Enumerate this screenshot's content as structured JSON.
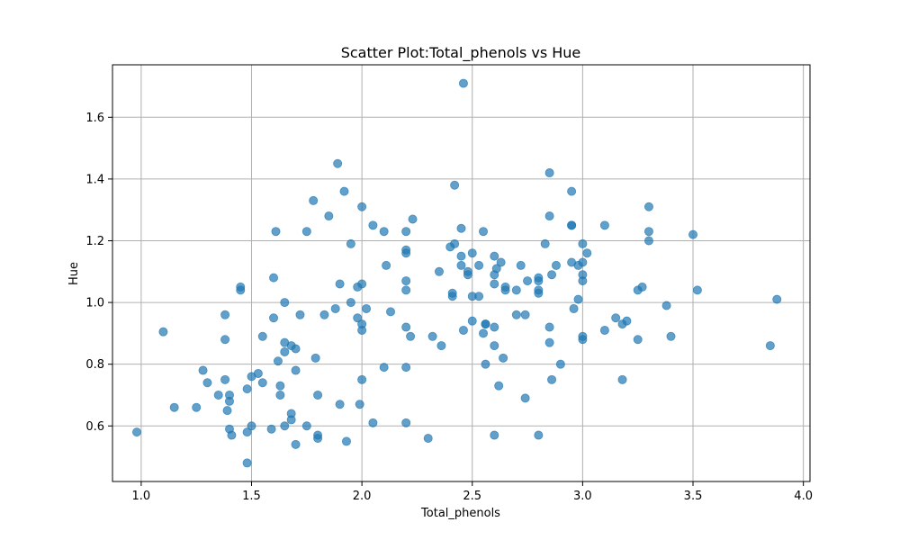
{
  "chart_data": {
    "type": "scatter",
    "title": "Scatter Plot:Total_phenols vs Hue",
    "xlabel": "Total_phenols",
    "ylabel": "Hue",
    "xlim": [
      0.87,
      4.03
    ],
    "ylim": [
      0.42,
      1.77
    ],
    "xticks": [
      1.0,
      1.5,
      2.0,
      2.5,
      3.0,
      3.5,
      4.0
    ],
    "xtick_labels": [
      "1.0",
      "1.5",
      "2.0",
      "2.5",
      "3.0",
      "3.5",
      "4.0"
    ],
    "yticks": [
      0.6,
      0.8,
      1.0,
      1.2,
      1.4,
      1.6
    ],
    "ytick_labels": [
      "0.6",
      "0.8",
      "1.0",
      "1.2",
      "1.4",
      "1.6"
    ],
    "grid": true,
    "marker_color": "#1f77b4",
    "marker_alpha": 0.7,
    "x": [
      0.98,
      1.1,
      1.15,
      1.25,
      1.28,
      1.3,
      1.35,
      1.38,
      1.38,
      1.38,
      1.39,
      1.4,
      1.4,
      1.4,
      1.41,
      1.45,
      1.45,
      1.48,
      1.48,
      1.48,
      1.5,
      1.5,
      1.53,
      1.55,
      1.55,
      1.59,
      1.6,
      1.6,
      1.61,
      1.62,
      1.63,
      1.63,
      1.65,
      1.65,
      1.65,
      1.65,
      1.68,
      1.68,
      1.68,
      1.7,
      1.7,
      1.7,
      1.72,
      1.75,
      1.75,
      1.78,
      1.79,
      1.8,
      1.8,
      1.8,
      1.83,
      1.85,
      1.88,
      1.89,
      1.9,
      1.9,
      1.92,
      1.93,
      1.95,
      1.95,
      1.98,
      1.98,
      1.99,
      2.0,
      2.0,
      2.0,
      2.0,
      2.0,
      2.02,
      2.05,
      2.05,
      2.1,
      2.1,
      2.11,
      2.13,
      2.2,
      2.2,
      2.2,
      2.2,
      2.2,
      2.2,
      2.2,
      2.2,
      2.22,
      2.23,
      2.3,
      2.32,
      2.35,
      2.36,
      2.4,
      2.41,
      2.41,
      2.42,
      2.42,
      2.45,
      2.45,
      2.45,
      2.46,
      2.46,
      2.48,
      2.48,
      2.5,
      2.5,
      2.5,
      2.53,
      2.53,
      2.55,
      2.55,
      2.56,
      2.56,
      2.56,
      2.6,
      2.6,
      2.6,
      2.6,
      2.6,
      2.6,
      2.61,
      2.62,
      2.63,
      2.64,
      2.65,
      2.65,
      2.7,
      2.7,
      2.72,
      2.74,
      2.74,
      2.75,
      2.8,
      2.8,
      2.8,
      2.8,
      2.8,
      2.83,
      2.85,
      2.85,
      2.85,
      2.85,
      2.86,
      2.86,
      2.88,
      2.9,
      2.95,
      2.95,
      2.95,
      2.95,
      2.96,
      2.98,
      2.98,
      3.0,
      3.0,
      3.0,
      3.0,
      3.0,
      3.0,
      3.02,
      3.1,
      3.1,
      3.15,
      3.18,
      3.18,
      3.2,
      3.25,
      3.25,
      3.27,
      3.3,
      3.3,
      3.3,
      3.38,
      3.4,
      3.5,
      3.52,
      3.85,
      3.88
    ],
    "y": [
      0.58,
      0.905,
      0.66,
      0.66,
      0.78,
      0.74,
      0.7,
      0.96,
      0.88,
      0.75,
      0.65,
      0.68,
      0.7,
      0.59,
      0.57,
      1.05,
      1.04,
      0.72,
      0.58,
      0.48,
      0.6,
      0.76,
      0.77,
      0.89,
      0.74,
      0.59,
      1.08,
      0.95,
      1.23,
      0.81,
      0.73,
      0.7,
      1.0,
      0.87,
      0.84,
      0.6,
      0.86,
      0.64,
      0.62,
      0.85,
      0.78,
      0.54,
      0.96,
      1.23,
      0.6,
      1.33,
      0.82,
      0.7,
      0.57,
      0.56,
      0.96,
      1.28,
      0.98,
      1.45,
      1.06,
      0.67,
      1.36,
      0.55,
      1.19,
      1.0,
      1.05,
      0.95,
      0.67,
      1.31,
      1.06,
      0.93,
      0.91,
      0.75,
      0.98,
      1.25,
      0.61,
      1.23,
      0.79,
      1.12,
      0.97,
      1.23,
      1.17,
      1.16,
      1.07,
      1.04,
      0.92,
      0.79,
      0.61,
      0.89,
      1.27,
      0.56,
      0.89,
      1.1,
      0.86,
      1.18,
      1.02,
      1.03,
      1.38,
      1.19,
      1.24,
      1.15,
      1.12,
      1.71,
      0.91,
      1.1,
      1.09,
      1.16,
      1.02,
      0.94,
      1.12,
      1.02,
      1.23,
      0.9,
      0.93,
      0.8,
      0.93,
      1.15,
      1.09,
      1.06,
      0.92,
      0.86,
      0.57,
      1.11,
      0.73,
      1.13,
      0.82,
      1.05,
      1.04,
      1.04,
      0.96,
      1.12,
      0.96,
      0.69,
      1.07,
      1.08,
      1.07,
      1.04,
      1.03,
      0.57,
      1.19,
      1.42,
      1.28,
      0.92,
      0.87,
      1.09,
      0.75,
      1.12,
      0.8,
      1.36,
      1.25,
      1.25,
      1.13,
      0.98,
      1.12,
      1.01,
      1.19,
      1.13,
      1.09,
      1.07,
      0.89,
      0.88,
      1.16,
      1.25,
      0.91,
      0.95,
      0.93,
      0.75,
      0.94,
      1.04,
      0.88,
      1.05,
      1.31,
      1.23,
      1.2,
      0.99,
      0.89,
      1.22,
      1.04,
      0.86,
      1.01
    ]
  }
}
